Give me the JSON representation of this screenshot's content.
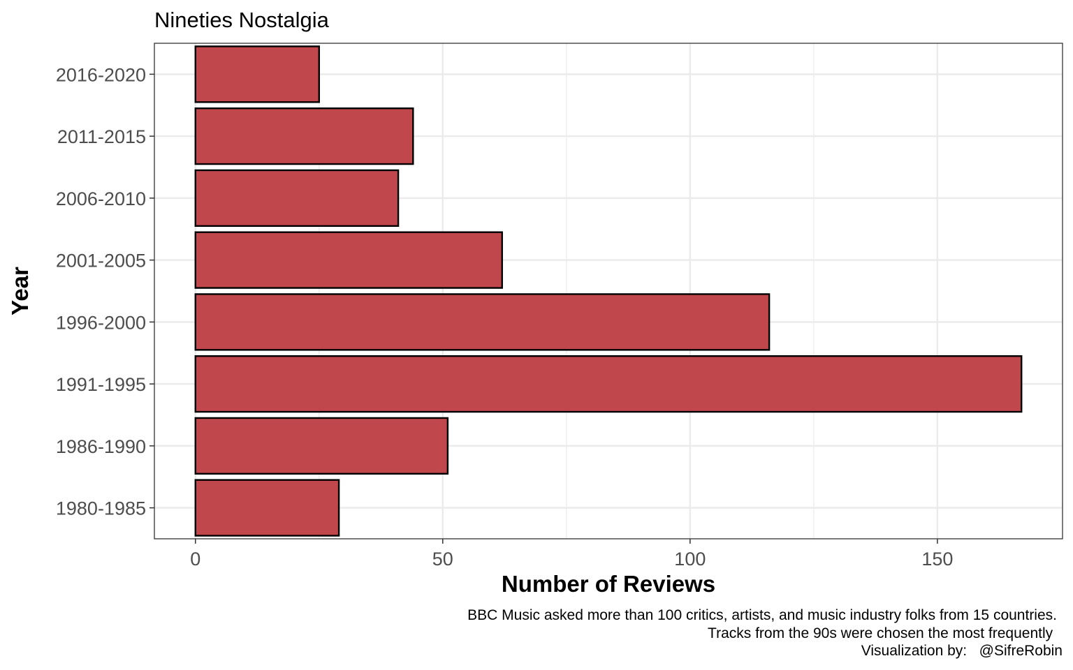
{
  "chart_data": {
    "type": "bar",
    "orientation": "horizontal",
    "title": "Nineties Nostalgia",
    "xlabel": "Number of Reviews",
    "ylabel": "Year",
    "categories": [
      "1980-1985",
      "1986-1990",
      "1991-1995",
      "1996-2000",
      "2001-2005",
      "2006-2010",
      "2011-2015",
      "2016-2020"
    ],
    "values": [
      29,
      51,
      167,
      116,
      62,
      41,
      44,
      25
    ],
    "xlim": [
      -8.3,
      175.3
    ],
    "xticks": [
      0,
      50,
      100,
      150
    ],
    "grid": true,
    "legend": "none",
    "colors": {
      "bar_fill": "#c0474b",
      "bar_stroke": "#000000",
      "grid": "#ebebeb",
      "panel_border": "#333333"
    },
    "caption": [
      "BBC Music asked more than 100 critics, artists, and music industry folks from 15 countries.",
      "Tracks from the 90s were chosen the most frequently ",
      "Visualization by:   @SifreRobin"
    ]
  }
}
